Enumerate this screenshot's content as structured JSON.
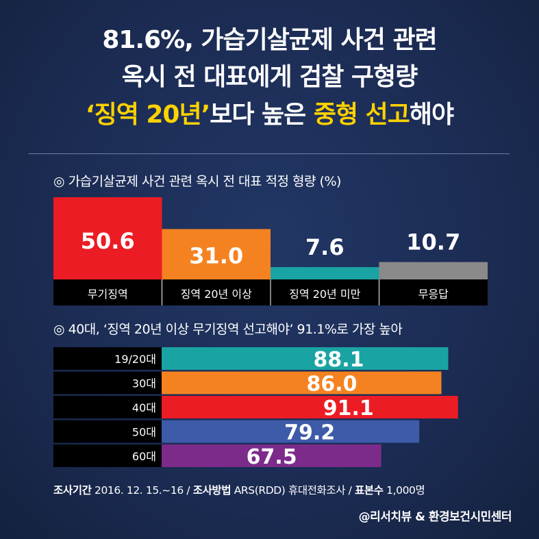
{
  "headline": {
    "line1": "81.6%, 가습기살균제 사건 관련",
    "line2": "옥시 전 대표에게 검찰 구형량",
    "line3_highlight_a": "‘징역 20년’",
    "line3_plain_a": "보다 높은 ",
    "line3_highlight_b": "중형 선고",
    "line3_plain_b": "해야"
  },
  "colors": {
    "background": "#1b2b52",
    "highlight": "#ffd200",
    "red": "#ec1c24",
    "orange": "#f58220",
    "teal": "#1aa3a3",
    "gray": "#8a8a8a",
    "blue": "#3d5ba9",
    "purple": "#7d2b8b",
    "label_strip": "#000000"
  },
  "chart_data": [
    {
      "type": "bar",
      "title": "◎ 가습기살균제 사건 관련 옥시 전 대표 적정 형량 (%)",
      "categories": [
        "무기징역",
        "징역 20년 이상",
        "징역 20년 미만",
        "무응답"
      ],
      "values": [
        50.6,
        31.0,
        7.6,
        10.7
      ],
      "value_labels": [
        "50.6",
        "31.0",
        "7.6",
        "10.7"
      ],
      "bar_colors": [
        "#ec1c24",
        "#f58220",
        "#1aa3a3",
        "#8a8a8a"
      ],
      "value_label_colors": [
        "#ffffff",
        "#ffffff",
        "#ffffff",
        "#ffffff"
      ],
      "ylim": [
        0,
        50.6
      ],
      "grid": false,
      "legend": "none"
    },
    {
      "type": "bar",
      "orientation": "horizontal",
      "title": "◎ 40대, ‘징역 20년 이상 무기징역 선고해야’ 91.1%로 가장 높아",
      "categories": [
        "19/20대",
        "30대",
        "40대",
        "50대",
        "60대"
      ],
      "values": [
        88.1,
        86.0,
        91.1,
        79.2,
        67.5
      ],
      "value_labels": [
        "88.1",
        "86.0",
        "91.1",
        "79.2",
        "67.5"
      ],
      "bar_colors": [
        "#1aa3a3",
        "#f58220",
        "#ec1c24",
        "#3d5ba9",
        "#7d2b8b"
      ],
      "xlim": [
        0,
        100
      ],
      "grid": false,
      "legend": "none"
    }
  ],
  "footer": {
    "period_label": "조사기간",
    "period_value": "2016. 12. 15.~16 /",
    "method_label": "조사방법",
    "method_value": "ARS(RDD) 휴대전화조사 /",
    "sample_label": "표본수",
    "sample_value": "1,000명"
  },
  "credit": "@리서치뷰 & 환경보건시민센터"
}
